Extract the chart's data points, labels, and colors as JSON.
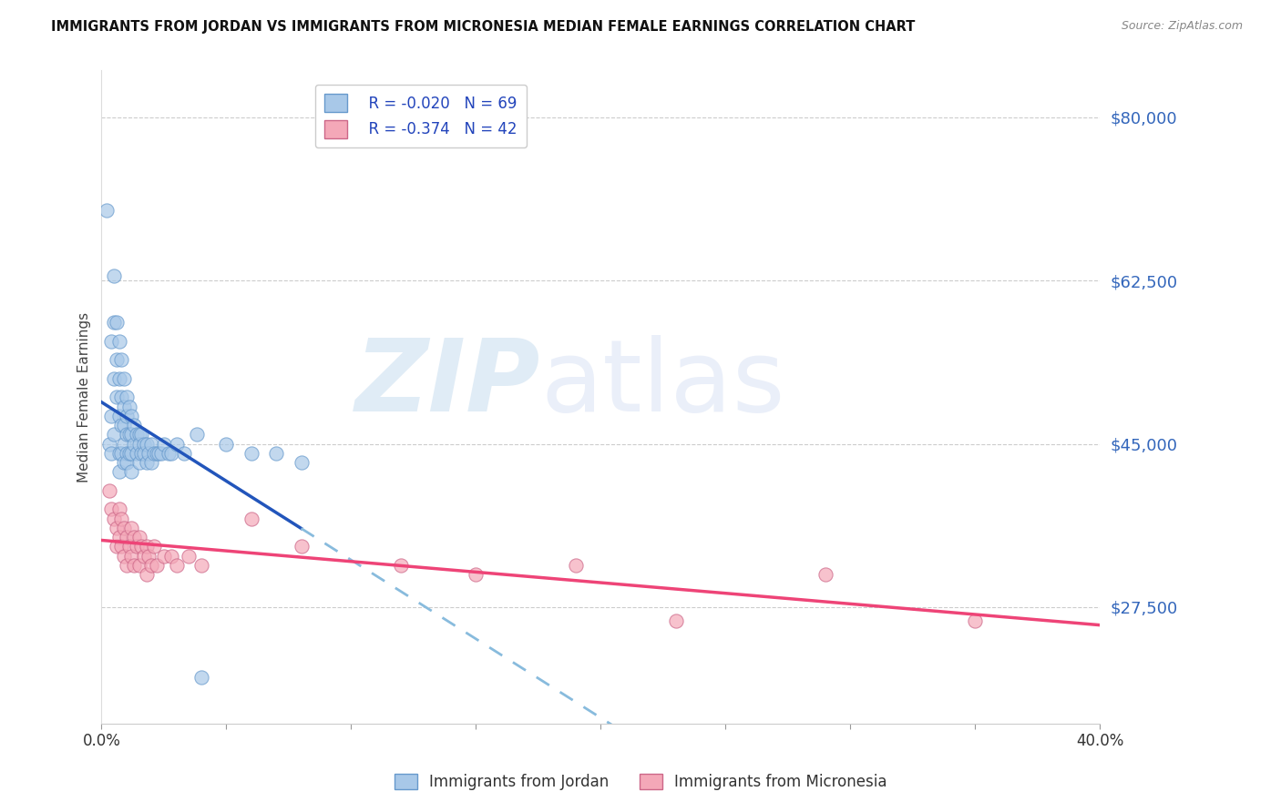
{
  "title": "IMMIGRANTS FROM JORDAN VS IMMIGRANTS FROM MICRONESIA MEDIAN FEMALE EARNINGS CORRELATION CHART",
  "source": "Source: ZipAtlas.com",
  "ylabel": "Median Female Earnings",
  "ytick_labels": [
    "$80,000",
    "$62,500",
    "$45,000",
    "$27,500"
  ],
  "ytick_values": [
    80000,
    62500,
    45000,
    27500
  ],
  "ylim": [
    15000,
    85000
  ],
  "xlim": [
    0.0,
    0.4
  ],
  "xtick_values": [
    0.0,
    0.05,
    0.1,
    0.15,
    0.2,
    0.25,
    0.3,
    0.35,
    0.4
  ],
  "xtick_show_labels": [
    0.0,
    0.4
  ],
  "jordan_R": "-0.020",
  "jordan_N": "69",
  "micronesia_R": "-0.374",
  "micronesia_N": "42",
  "jordan_color": "#a8c8e8",
  "micronesia_color": "#f4a8b8",
  "jordan_line_color": "#2255bb",
  "micronesia_line_color": "#ee4477",
  "jordan_dash_color": "#88bbdd",
  "legend_label_jordan": "Immigrants from Jordan",
  "legend_label_micronesia": "Immigrants from Micronesia",
  "jordan_scatter_x": [
    0.002,
    0.003,
    0.004,
    0.004,
    0.004,
    0.005,
    0.005,
    0.005,
    0.005,
    0.006,
    0.006,
    0.006,
    0.007,
    0.007,
    0.007,
    0.007,
    0.007,
    0.008,
    0.008,
    0.008,
    0.008,
    0.009,
    0.009,
    0.009,
    0.009,
    0.009,
    0.01,
    0.01,
    0.01,
    0.01,
    0.01,
    0.011,
    0.011,
    0.011,
    0.012,
    0.012,
    0.012,
    0.012,
    0.013,
    0.013,
    0.014,
    0.014,
    0.015,
    0.015,
    0.015,
    0.016,
    0.016,
    0.017,
    0.017,
    0.018,
    0.018,
    0.019,
    0.02,
    0.02,
    0.021,
    0.022,
    0.023,
    0.024,
    0.025,
    0.027,
    0.028,
    0.03,
    0.033,
    0.038,
    0.04,
    0.05,
    0.06,
    0.07,
    0.08
  ],
  "jordan_scatter_y": [
    70000,
    45000,
    56000,
    48000,
    44000,
    63000,
    58000,
    52000,
    46000,
    58000,
    54000,
    50000,
    56000,
    52000,
    48000,
    44000,
    42000,
    54000,
    50000,
    47000,
    44000,
    52000,
    49000,
    47000,
    45000,
    43000,
    50000,
    48000,
    46000,
    44000,
    43000,
    49000,
    46000,
    44000,
    48000,
    46000,
    44000,
    42000,
    47000,
    45000,
    46000,
    44000,
    46000,
    45000,
    43000,
    46000,
    44000,
    45000,
    44000,
    45000,
    43000,
    44000,
    45000,
    43000,
    44000,
    44000,
    44000,
    44000,
    45000,
    44000,
    44000,
    45000,
    44000,
    46000,
    20000,
    45000,
    44000,
    44000,
    43000
  ],
  "micronesia_scatter_x": [
    0.003,
    0.004,
    0.005,
    0.006,
    0.006,
    0.007,
    0.007,
    0.008,
    0.008,
    0.009,
    0.009,
    0.01,
    0.01,
    0.011,
    0.012,
    0.012,
    0.013,
    0.013,
    0.014,
    0.015,
    0.015,
    0.016,
    0.017,
    0.018,
    0.018,
    0.019,
    0.02,
    0.021,
    0.022,
    0.025,
    0.028,
    0.03,
    0.035,
    0.04,
    0.06,
    0.08,
    0.12,
    0.15,
    0.19,
    0.23,
    0.29,
    0.35
  ],
  "micronesia_scatter_y": [
    40000,
    38000,
    37000,
    36000,
    34000,
    38000,
    35000,
    37000,
    34000,
    36000,
    33000,
    35000,
    32000,
    34000,
    36000,
    33000,
    35000,
    32000,
    34000,
    35000,
    32000,
    34000,
    33000,
    34000,
    31000,
    33000,
    32000,
    34000,
    32000,
    33000,
    33000,
    32000,
    33000,
    32000,
    37000,
    34000,
    32000,
    31000,
    32000,
    26000,
    31000,
    26000
  ]
}
